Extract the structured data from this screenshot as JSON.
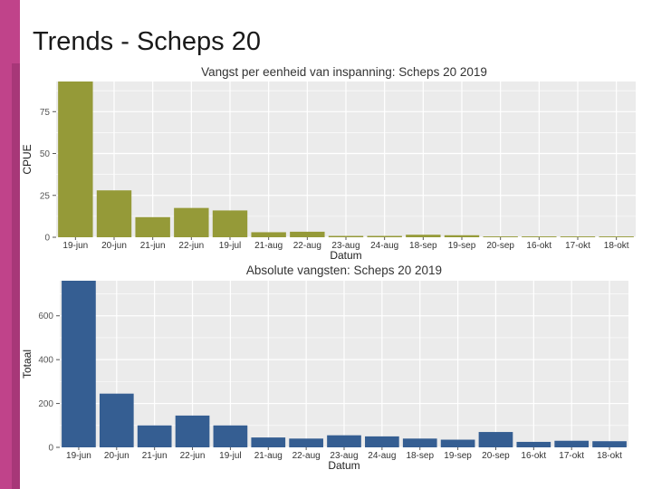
{
  "slide": {
    "title": "Trends - Scheps 20"
  },
  "colors": {
    "accent_band": "#c0438a",
    "cpue_bar": "#959a38",
    "total_bar": "#355e92",
    "panel_bg": "#ebebeb"
  },
  "chart_data": [
    {
      "type": "bar",
      "title": "Vangst per eenheid van inspanning: Scheps 20   2019",
      "xlabel": "Datum",
      "ylabel": "CPUE",
      "ylim": [
        0,
        93
      ],
      "yticks": [
        0,
        25,
        50,
        75
      ],
      "categories": [
        "19-jun",
        "20-jun",
        "21-jun",
        "22-jun",
        "19-jul",
        "21-aug",
        "22-aug",
        "23-aug",
        "24-aug",
        "18-sep",
        "19-sep",
        "20-sep",
        "16-okt",
        "17-okt",
        "18-okt"
      ],
      "values": [
        93,
        28,
        12,
        17.5,
        16,
        3,
        3.3,
        0.8,
        0.8,
        1.5,
        1.2,
        0.5,
        0.5,
        0.5,
        0.5
      ],
      "grid": true
    },
    {
      "type": "bar",
      "title": "Absolute vangsten: Scheps 20   2019",
      "xlabel": "Datum",
      "ylabel": "Totaal",
      "ylim": [
        0,
        760
      ],
      "yticks": [
        0,
        200,
        400,
        600
      ],
      "categories": [
        "19-jun",
        "20-jun",
        "21-jun",
        "22-jun",
        "19-jul",
        "21-aug",
        "22-aug",
        "23-aug",
        "24-aug",
        "18-sep",
        "19-sep",
        "20-sep",
        "16-okt",
        "17-okt",
        "18-okt"
      ],
      "values": [
        760,
        245,
        100,
        145,
        100,
        45,
        40,
        55,
        50,
        40,
        35,
        70,
        25,
        30,
        28
      ],
      "grid": true
    }
  ]
}
